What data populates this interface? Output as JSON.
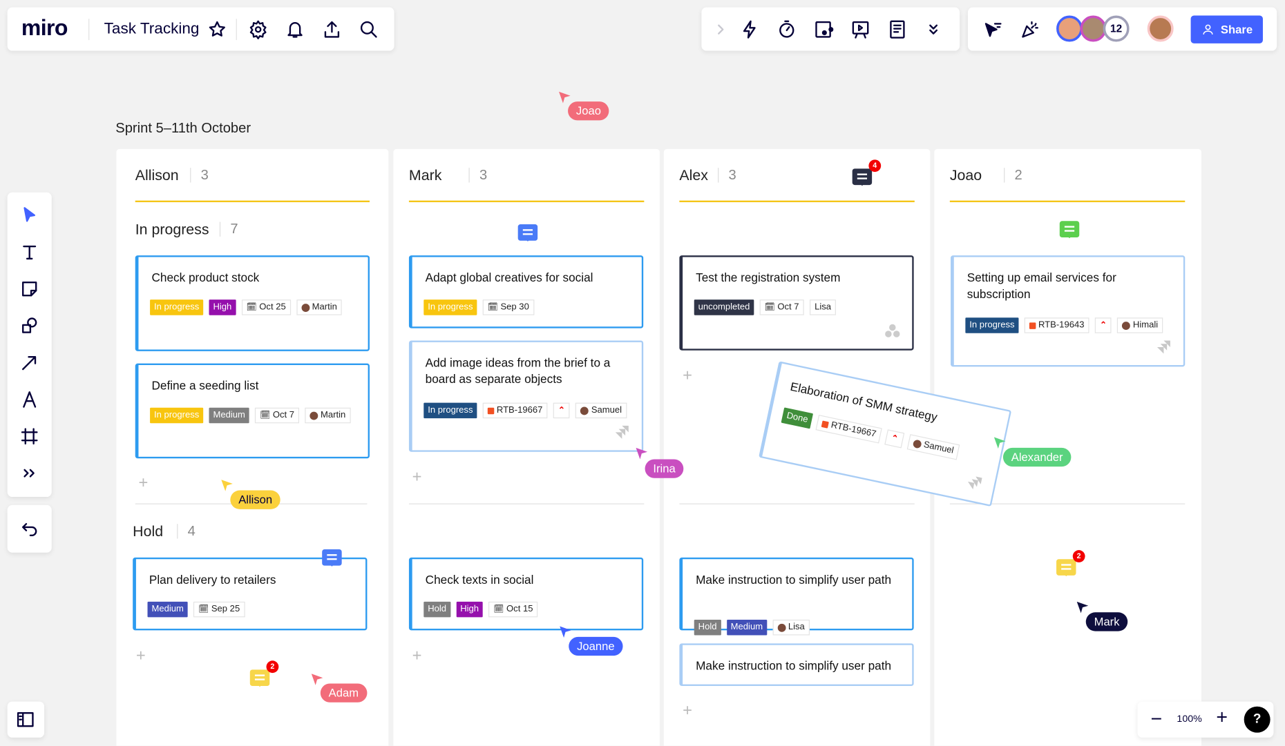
{
  "header": {
    "logo": "miro",
    "board_title": "Task Tracking",
    "icons": [
      "star-icon",
      "settings-icon",
      "bell-icon",
      "upload-icon",
      "search-icon"
    ]
  },
  "toolbar_center": {
    "icons": [
      "chevron-right-icon",
      "lightning-icon",
      "timer-icon",
      "card-icon",
      "presentation-icon",
      "notes-icon",
      "double-chevron-down-icon"
    ]
  },
  "toolbar_right": {
    "collaborator_count": "12",
    "share_label": "Share"
  },
  "left_toolbar": {
    "tools": [
      "select-icon",
      "text-icon",
      "sticky-note-icon",
      "shapes-icon",
      "arrow-icon",
      "pen-icon",
      "frame-icon",
      "more-icon"
    ],
    "undo": "undo-icon"
  },
  "zoom": {
    "level": "100%",
    "help": "?"
  },
  "board": {
    "sprint_title": "Sprint 5–11th October",
    "columns": [
      {
        "name": "Allison",
        "count": "3"
      },
      {
        "name": "Mark",
        "count": "3"
      },
      {
        "name": "Alex",
        "count": "3"
      },
      {
        "name": "Joao",
        "count": "2"
      }
    ],
    "groups": [
      {
        "name": "In progress",
        "count": "7"
      },
      {
        "name": "Hold",
        "count": "4"
      }
    ]
  },
  "colors": {
    "accent": "#4262ff",
    "yellow": "#f8c50f",
    "purple": "#9510ac",
    "indigo": "#4250b8",
    "navy": "#1f4f82",
    "gray": "#7f7f7f",
    "dark": "#2f3447",
    "green": "#3f8e3a"
  },
  "cards": [
    {
      "title": "Check product stock",
      "tags": [
        {
          "label": "In progress",
          "kind": "yellow"
        },
        {
          "label": "High",
          "kind": "purple"
        },
        {
          "label": "Oct 25",
          "kind": "date"
        },
        {
          "label": "Martin",
          "kind": "person"
        }
      ]
    },
    {
      "title": "Define a seeding list",
      "tags": [
        {
          "label": "In progress",
          "kind": "yellow"
        },
        {
          "label": "Medium",
          "kind": "gray"
        },
        {
          "label": "Oct 7",
          "kind": "date"
        },
        {
          "label": "Martin",
          "kind": "person"
        }
      ]
    },
    {
      "title": "Adapt global creatives for social",
      "tags": [
        {
          "label": "In progress",
          "kind": "yellow"
        },
        {
          "label": "Sep 30",
          "kind": "date"
        }
      ]
    },
    {
      "title": "Add image ideas from the brief to a board as separate objects",
      "tags": [
        {
          "label": "In progress",
          "kind": "navy"
        },
        {
          "label": "RTB-19667",
          "kind": "ticket"
        },
        {
          "label": "",
          "kind": "priority"
        },
        {
          "label": "Samuel",
          "kind": "person"
        }
      ],
      "jira": true
    },
    {
      "title": "Test the registration system",
      "tags": [
        {
          "label": "uncompleted",
          "kind": "dark"
        },
        {
          "label": "Oct 7",
          "kind": "date"
        },
        {
          "label": "Lisa",
          "kind": "plain"
        }
      ],
      "asana": true
    },
    {
      "title": "Setting up email services for subscription",
      "tags": [
        {
          "label": "In progress",
          "kind": "navy"
        },
        {
          "label": "RTB-19643",
          "kind": "ticket"
        },
        {
          "label": "",
          "kind": "priority"
        },
        {
          "label": "Himali",
          "kind": "person"
        }
      ],
      "jira": true
    },
    {
      "title": "Elaboration of SMM strategy",
      "tags": [
        {
          "label": "Done",
          "kind": "green"
        },
        {
          "label": "RTB-19667",
          "kind": "ticket"
        },
        {
          "label": "",
          "kind": "priority"
        },
        {
          "label": "Samuel",
          "kind": "person"
        }
      ],
      "jira": true
    },
    {
      "title": "Plan delivery to retailers",
      "tags": [
        {
          "label": "Medium",
          "kind": "indigo"
        },
        {
          "label": "Sep 25",
          "kind": "date"
        }
      ]
    },
    {
      "title": "Check texts in social",
      "tags": [
        {
          "label": "Hold",
          "kind": "gray"
        },
        {
          "label": "High",
          "kind": "purple"
        },
        {
          "label": "Oct 15",
          "kind": "date"
        }
      ]
    },
    {
      "title": "Make instruction to simplify user path",
      "tags": [
        {
          "label": "Hold",
          "kind": "gray"
        },
        {
          "label": "Medium",
          "kind": "indigo"
        },
        {
          "label": "Lisa",
          "kind": "person"
        }
      ]
    },
    {
      "title": "Make instruction to simplify user path",
      "tags": []
    }
  ],
  "cursors": [
    {
      "name": "Joao",
      "color": "#f26c7a"
    },
    {
      "name": "Irina",
      "color": "#c94fc0"
    },
    {
      "name": "Alexander",
      "color": "#5bd37f"
    },
    {
      "name": "Allison",
      "color": "#fbd13c"
    },
    {
      "name": "Adam",
      "color": "#f26c7a"
    },
    {
      "name": "Joanne",
      "color": "#4262ff"
    },
    {
      "name": "Mark",
      "color": "#0e0e3d"
    }
  ],
  "comments": [
    {
      "color": "#4a7bf7",
      "badge": ""
    },
    {
      "color": "#5ccf4e",
      "badge": ""
    },
    {
      "color": "#2a2f45",
      "badge": "4"
    },
    {
      "color": "#4a7bf7",
      "badge": ""
    },
    {
      "color": "#f7d64a",
      "badge": "2"
    },
    {
      "color": "#f7d64a",
      "badge": "2"
    }
  ]
}
